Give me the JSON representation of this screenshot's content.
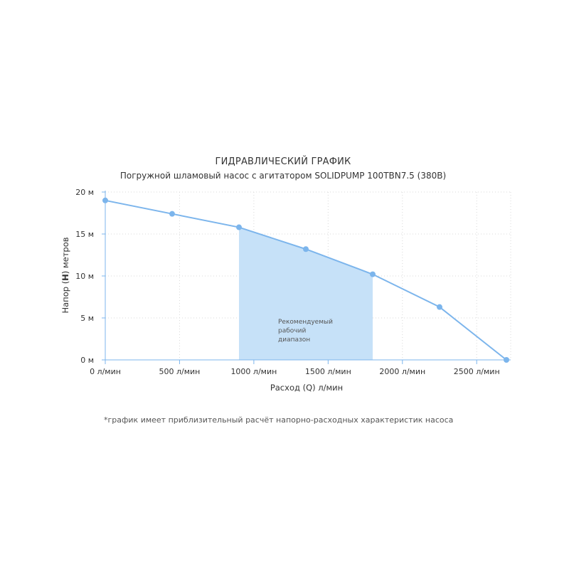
{
  "chart_data": {
    "type": "line",
    "title": "ГИДРАВЛИЧЕСКИЙ ГРАФИК",
    "subtitle": "Погружной шламовый насос с агитатором SOLIDPUMP 100TBN7.5 (380В)",
    "xlabel": "Расход (Q) л/мин",
    "ylabel_parts": [
      "Напор (",
      "H",
      ") метров"
    ],
    "x_tick_labels": [
      "0 л/мин",
      "500 л/мин",
      "1000 л/мин",
      "1500 л/мин",
      "2000 л/мин",
      "2500 л/мин"
    ],
    "x_ticks": [
      0,
      500,
      1000,
      1500,
      2000,
      2500
    ],
    "y_tick_labels": [
      "0 м",
      "5 м",
      "10 м",
      "15 м",
      "20 м"
    ],
    "y_ticks": [
      0,
      5,
      10,
      15,
      20
    ],
    "xlim": [
      0,
      2700
    ],
    "ylim": [
      0,
      20
    ],
    "grid": true,
    "series": [
      {
        "x": [
          0,
          450,
          900,
          1350,
          1800,
          2250,
          2700
        ],
        "y": [
          19,
          17.4,
          15.8,
          13.2,
          10.2,
          6.3,
          0
        ]
      }
    ],
    "band": {
      "x_range": [
        900,
        1800
      ],
      "label_lines": [
        "Рекомендуемый",
        "рабочий",
        "диапазон"
      ]
    },
    "footnote": "*график имеет приблизительный расчёт напорно-расходных характеристик насоса",
    "colors": {
      "line": "#7cb5ec",
      "band": "#c6e1f8",
      "point": "#7cb5ec"
    }
  }
}
